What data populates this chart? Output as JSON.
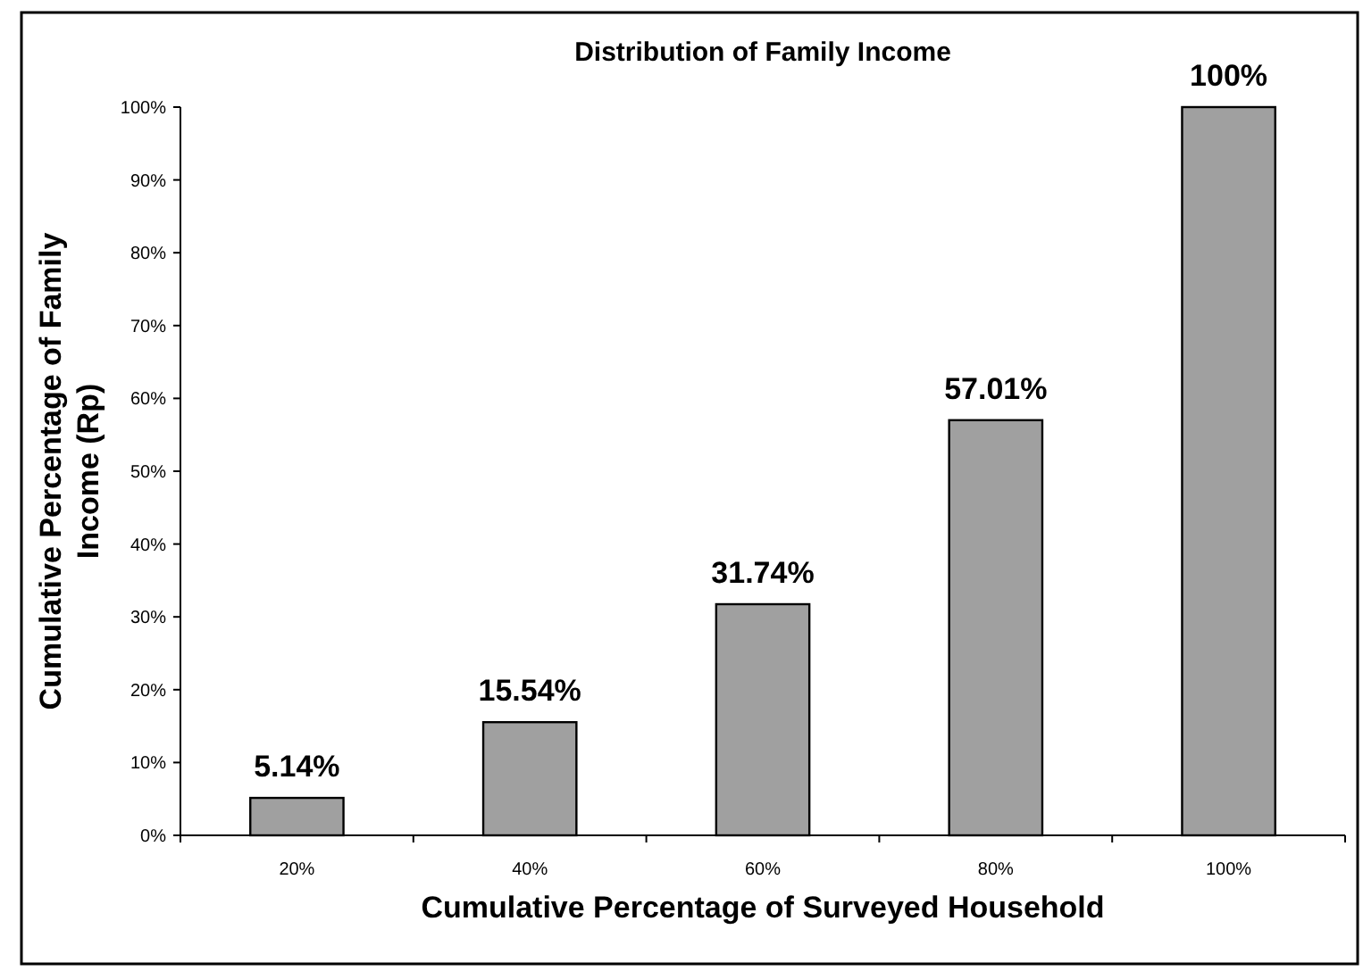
{
  "chart_data": {
    "type": "bar",
    "title": "Distribution of Family Income",
    "xlabel": "Cumulative Percentage of Surveyed Household",
    "ylabel": "Cumulative Percentage of Family Income (Rp)",
    "categories": [
      "20%",
      "40%",
      "60%",
      "80%",
      "100%"
    ],
    "values": [
      5.14,
      15.54,
      31.74,
      57.01,
      100
    ],
    "color": "#a0a0a0",
    "value_labels": [
      "5.14%",
      "15.54%",
      "31.74%",
      "57.01%",
      "100%"
    ],
    "ylim": [
      0,
      100
    ],
    "yticks": [
      {
        "value": 0,
        "label": "0%"
      },
      {
        "value": 10,
        "label": "10%"
      },
      {
        "value": 20,
        "label": "20%"
      },
      {
        "value": 30,
        "label": "30%"
      },
      {
        "value": 40,
        "label": "40%"
      },
      {
        "value": 50,
        "label": "50%"
      },
      {
        "value": 60,
        "label": "60%"
      },
      {
        "value": 70,
        "label": "70%"
      },
      {
        "value": 80,
        "label": "80%"
      },
      {
        "value": 90,
        "label": "90%"
      },
      {
        "value": 100,
        "label": "100%"
      }
    ],
    "grid": false
  }
}
